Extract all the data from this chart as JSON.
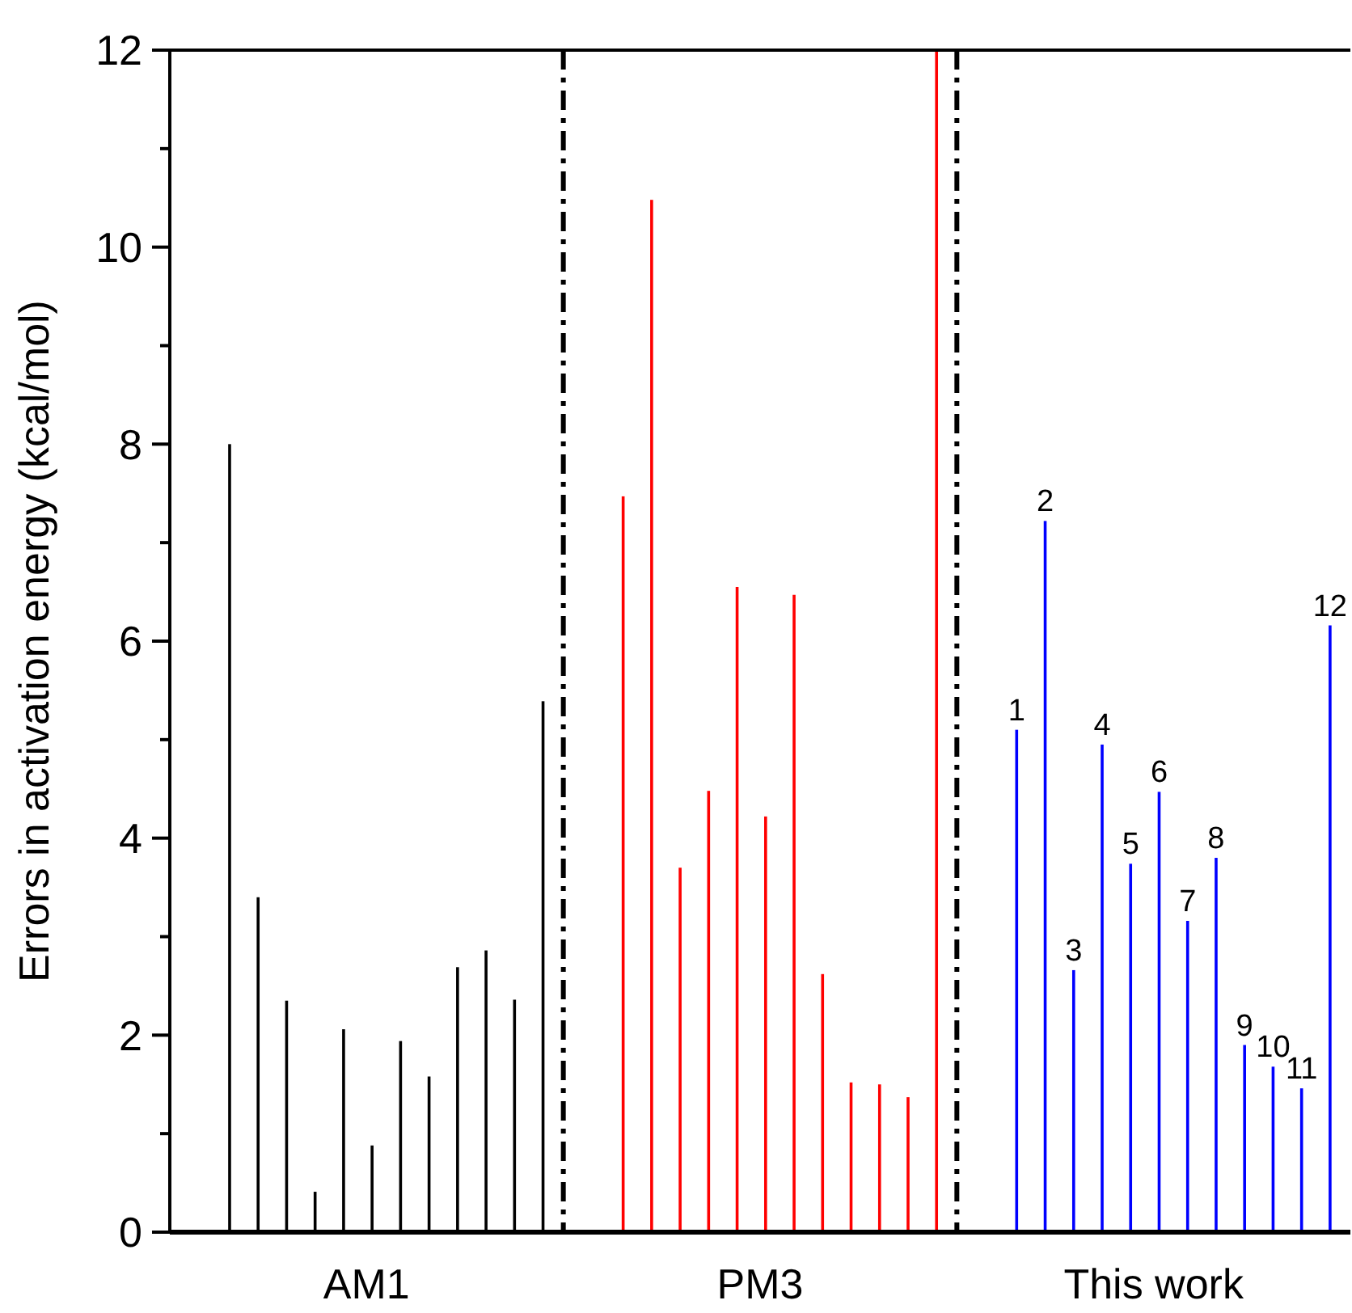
{
  "chart_data": {
    "type": "bar",
    "ylabel": "Errors in activation energy (kcal/mol)",
    "categories": [
      "AM1",
      "PM3",
      "This work"
    ],
    "ylim": [
      0,
      12
    ],
    "yticks": [
      0,
      {
        "value": 1,
        "label": null
      },
      2,
      {
        "value": 3,
        "label": null
      },
      4,
      {
        "value": 5,
        "label": null
      },
      6,
      {
        "value": 7,
        "label": null
      },
      8,
      {
        "value": 9,
        "label": null
      },
      10,
      {
        "value": 11,
        "label": null
      },
      12
    ],
    "series": [
      {
        "colors": [
          "#000000",
          "#ff0000",
          "#0000ff"
        ],
        "values": [
          8.0,
          7.47,
          5.1
        ]
      },
      {
        "colors": [
          "#000000",
          "#ff0000",
          "#0000ff"
        ],
        "values": [
          3.4,
          10.48,
          7.22
        ]
      },
      {
        "colors": [
          "#000000",
          "#ff0000",
          "#0000ff"
        ],
        "values": [
          2.35,
          3.7,
          2.66
        ]
      },
      {
        "colors": [
          "#000000",
          "#ff0000",
          "#0000ff"
        ],
        "values": [
          0.41,
          4.48,
          4.95
        ]
      },
      {
        "colors": [
          "#000000",
          "#ff0000",
          "#0000ff"
        ],
        "values": [
          2.06,
          6.55,
          3.74
        ]
      },
      {
        "colors": [
          "#000000",
          "#ff0000",
          "#0000ff"
        ],
        "values": [
          0.88,
          4.22,
          4.47
        ]
      },
      {
        "colors": [
          "#000000",
          "#ff0000",
          "#0000ff"
        ],
        "values": [
          1.94,
          6.47,
          3.16
        ]
      },
      {
        "colors": [
          "#000000",
          "#ff0000",
          "#0000ff"
        ],
        "values": [
          1.58,
          2.62,
          3.8
        ]
      },
      {
        "colors": [
          "#000000",
          "#ff0000",
          "#0000ff"
        ],
        "values": [
          2.69,
          1.52,
          1.9
        ]
      },
      {
        "colors": [
          "#000000",
          "#ff0000",
          "#0000ff"
        ],
        "values": [
          2.86,
          1.5,
          1.68
        ]
      },
      {
        "colors": [
          "#000000",
          "#ff0000",
          "#0000ff"
        ],
        "values": [
          2.36,
          1.37,
          1.46
        ]
      },
      {
        "colors": [
          "#000000",
          "#ff0000",
          "#0000ff"
        ],
        "values": [
          5.39,
          12,
          6.16
        ]
      }
    ],
    "annotations": [
      "1",
      "2",
      "3",
      "4",
      "5",
      "6",
      "7",
      "8",
      "9",
      "10",
      "11",
      "12"
    ]
  }
}
